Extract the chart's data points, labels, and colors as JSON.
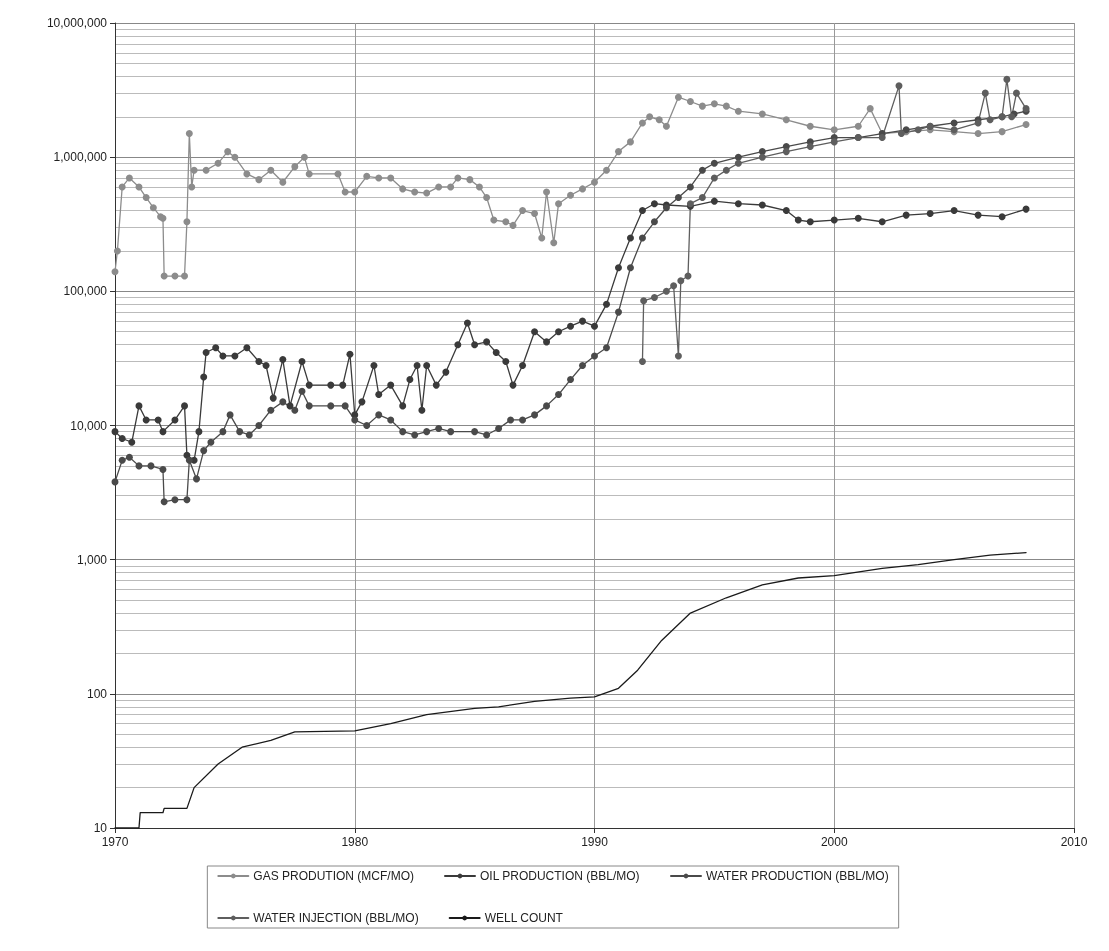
{
  "chart_data": {
    "type": "line",
    "log": "y",
    "grid": true,
    "legend": "bottom",
    "marker": "circle",
    "line_style": "solid",
    "xlim": [
      1970,
      2010
    ],
    "xticks": [
      1970,
      1980,
      1990,
      2000,
      2010
    ],
    "ylim": [
      10,
      10000000
    ],
    "yticks": [
      {
        "value": 10,
        "label": "10"
      },
      {
        "value": 100,
        "label": "100"
      },
      {
        "value": 1000,
        "label": "1,000"
      },
      {
        "value": 10000,
        "label": "10,000"
      },
      {
        "value": 100000,
        "label": "100,000"
      },
      {
        "value": 1000000,
        "label": "1,000,000"
      },
      {
        "value": 10000000,
        "label": "10,000,000"
      }
    ],
    "series": [
      {
        "name": "GAS PRODUTION (MCF/MO)",
        "color": "#8c8c8c",
        "x": [
          1970.0,
          1970.1,
          1970.3,
          1970.6,
          1971.0,
          1971.3,
          1971.6,
          1971.9,
          1972.0,
          1972.05,
          1972.5,
          1972.9,
          1973.0,
          1973.1,
          1973.2,
          1973.3,
          1973.8,
          1974.3,
          1974.7,
          1975.0,
          1975.5,
          1976.0,
          1976.5,
          1977.0,
          1977.5,
          1977.9,
          1978.1,
          1979.3,
          1979.6,
          1980.0,
          1980.5,
          1981.0,
          1981.5,
          1982.0,
          1982.5,
          1983.0,
          1983.5,
          1984.0,
          1984.3,
          1984.8,
          1985.2,
          1985.5,
          1985.8,
          1986.3,
          1986.6,
          1987.0,
          1987.5,
          1987.8,
          1988.0,
          1988.3,
          1988.5,
          1989.0,
          1989.5,
          1990.0,
          1990.5,
          1991.0,
          1991.5,
          1992.0,
          1992.3,
          1992.7,
          1993.0,
          1993.5,
          1994.0,
          1994.5,
          1995.0,
          1995.5,
          1996.0,
          1997.0,
          1998.0,
          1999.0,
          2000.0,
          2001.0,
          2001.5,
          2002.0,
          2003.0,
          2004.0,
          2005.0,
          2006.0,
          2007.0,
          2008.0
        ],
        "values": [
          140000,
          200000,
          600000,
          700000,
          600000,
          500000,
          420000,
          360000,
          350000,
          130000,
          130000,
          130000,
          330000,
          1500000,
          600000,
          800000,
          800000,
          900000,
          1100000,
          1000000,
          750000,
          680000,
          800000,
          650000,
          850000,
          1000000,
          750000,
          750000,
          550000,
          550000,
          720000,
          700000,
          700000,
          580000,
          550000,
          540000,
          600000,
          600000,
          700000,
          680000,
          600000,
          500000,
          340000,
          330000,
          310000,
          400000,
          380000,
          250000,
          550000,
          230000,
          450000,
          520000,
          580000,
          650000,
          800000,
          1100000,
          1300000,
          1800000,
          2000000,
          1900000,
          1700000,
          2800000,
          2600000,
          2400000,
          2500000,
          2400000,
          2200000,
          2100000,
          1900000,
          1700000,
          1600000,
          1700000,
          2300000,
          1500000,
          1550000,
          1600000,
          1550000,
          1500000,
          1550000,
          1750000
        ]
      },
      {
        "name": "OIL PRODUCTION (BBL/MO)",
        "color": "#3a3a3a",
        "x": [
          1970.0,
          1970.3,
          1970.7,
          1971.0,
          1971.3,
          1971.8,
          1972.0,
          1972.5,
          1972.9,
          1973.0,
          1973.3,
          1973.5,
          1973.7,
          1973.8,
          1974.2,
          1974.5,
          1975.0,
          1975.5,
          1976.0,
          1976.3,
          1976.6,
          1977.0,
          1977.3,
          1977.8,
          1978.1,
          1979.0,
          1979.5,
          1979.8,
          1980.0,
          1980.3,
          1980.8,
          1981.0,
          1981.5,
          1982.0,
          1982.3,
          1982.6,
          1982.8,
          1983.0,
          1983.4,
          1983.8,
          1984.3,
          1984.7,
          1985.0,
          1985.5,
          1985.9,
          1986.3,
          1986.6,
          1987.0,
          1987.5,
          1988.0,
          1988.5,
          1989.0,
          1989.5,
          1990.0,
          1990.5,
          1991.0,
          1991.5,
          1992.0,
          1992.5,
          1993.0,
          1994.0,
          1995.0,
          1996.0,
          1997.0,
          1998.0,
          1998.5,
          1999.0,
          2000.0,
          2001.0,
          2002.0,
          2003.0,
          2004.0,
          2005.0,
          2006.0,
          2007.0,
          2008.0
        ],
        "values": [
          9000,
          8000,
          7500,
          14000,
          11000,
          11000,
          9000,
          11000,
          14000,
          6000,
          5500,
          9000,
          23000,
          35000,
          38000,
          33000,
          33000,
          38000,
          30000,
          28000,
          16000,
          31000,
          14000,
          30000,
          20000,
          20000,
          20000,
          34000,
          12000,
          15000,
          28000,
          17000,
          20000,
          14000,
          22000,
          28000,
          13000,
          28000,
          20000,
          25000,
          40000,
          58000,
          40000,
          42000,
          35000,
          30000,
          20000,
          28000,
          50000,
          42000,
          50000,
          55000,
          60000,
          55000,
          80000,
          150000,
          250000,
          400000,
          450000,
          440000,
          430000,
          470000,
          450000,
          440000,
          400000,
          340000,
          330000,
          340000,
          350000,
          330000,
          370000,
          380000,
          400000,
          370000,
          360000,
          410000
        ]
      },
      {
        "name": "WATER PRODUCTION (BBL/MO)",
        "color": "#4a4a4a",
        "x": [
          1970.0,
          1970.3,
          1970.6,
          1971.0,
          1971.5,
          1972.0,
          1972.05,
          1972.5,
          1973.0,
          1973.1,
          1973.4,
          1973.7,
          1974.0,
          1974.5,
          1974.8,
          1975.2,
          1975.6,
          1976.0,
          1976.5,
          1977.0,
          1977.5,
          1977.8,
          1978.1,
          1979.0,
          1979.6,
          1980.0,
          1980.5,
          1981.0,
          1981.5,
          1982.0,
          1982.5,
          1983.0,
          1983.5,
          1984.0,
          1985.0,
          1985.5,
          1986.0,
          1986.5,
          1987.0,
          1987.5,
          1988.0,
          1988.5,
          1989.0,
          1989.5,
          1990.0,
          1990.5,
          1991.0,
          1991.5,
          1992.0,
          1992.5,
          1993.0,
          1993.5,
          1994.0,
          1994.5,
          1995.0,
          1996.0,
          1997.0,
          1998.0,
          1999.0,
          2000.0,
          2001.0,
          2002.0,
          2003.0,
          2004.0,
          2005.0,
          2006.0,
          2007.0,
          2007.5,
          2008.0
        ],
        "values": [
          3800,
          5500,
          5800,
          5000,
          5000,
          4700,
          2700,
          2800,
          2800,
          5500,
          4000,
          6500,
          7500,
          9000,
          12000,
          9000,
          8500,
          10000,
          13000,
          15000,
          13000,
          18000,
          14000,
          14000,
          14000,
          11000,
          10000,
          12000,
          11000,
          9000,
          8500,
          9000,
          9500,
          9000,
          9000,
          8500,
          9500,
          11000,
          11000,
          12000,
          14000,
          17000,
          22000,
          28000,
          33000,
          38000,
          70000,
          150000,
          250000,
          330000,
          420000,
          500000,
          600000,
          800000,
          900000,
          1000000,
          1100000,
          1200000,
          1300000,
          1400000,
          1400000,
          1500000,
          1600000,
          1700000,
          1800000,
          1900000,
          2000000,
          2100000,
          2200000
        ]
      },
      {
        "name": "WATER INJECTION (BBL/MO)",
        "color": "#5e5e5e",
        "x": [
          1992.0,
          1992.05,
          1992.5,
          1993.0,
          1993.3,
          1993.5,
          1993.6,
          1993.9,
          1994.0,
          1994.5,
          1995.0,
          1995.5,
          1996.0,
          1997.0,
          1998.0,
          1999.0,
          2000.0,
          2001.0,
          2002.0,
          2002.7,
          2002.8,
          2003.5,
          2004.0,
          2005.0,
          2006.0,
          2006.3,
          2006.5,
          2007.0,
          2007.2,
          2007.4,
          2007.6,
          2008.0
        ],
        "values": [
          30000,
          85000,
          90000,
          100000,
          110000,
          33000,
          120000,
          130000,
          450000,
          500000,
          700000,
          800000,
          900000,
          1000000,
          1100000,
          1200000,
          1300000,
          1400000,
          1400000,
          3400000,
          1500000,
          1600000,
          1700000,
          1600000,
          1800000,
          3000000,
          1900000,
          2000000,
          3800000,
          2000000,
          3000000,
          2300000
        ]
      },
      {
        "name": "WELL COUNT",
        "color": "#1a1a1a",
        "marker": "none",
        "x": [
          1970.0,
          1971.0,
          1971.05,
          1972.0,
          1972.05,
          1973.0,
          1973.3,
          1974.3,
          1975.3,
          1976.5,
          1977.5,
          1980.0,
          1981.5,
          1983.0,
          1985.0,
          1986.0,
          1987.5,
          1989.0,
          1990.0,
          1991.0,
          1991.8,
          1992.8,
          1994.0,
          1995.5,
          1997.0,
          1998.5,
          2000.0,
          2002.0,
          2003.5,
          2005.0,
          2006.5,
          2008.0
        ],
        "values": [
          10,
          10,
          13,
          13,
          14,
          14,
          20,
          30,
          40,
          45,
          52,
          53,
          60,
          70,
          78,
          80,
          88,
          93,
          95,
          110,
          150,
          250,
          400,
          520,
          650,
          730,
          760,
          860,
          920,
          1000,
          1080,
          1130
        ]
      }
    ]
  }
}
